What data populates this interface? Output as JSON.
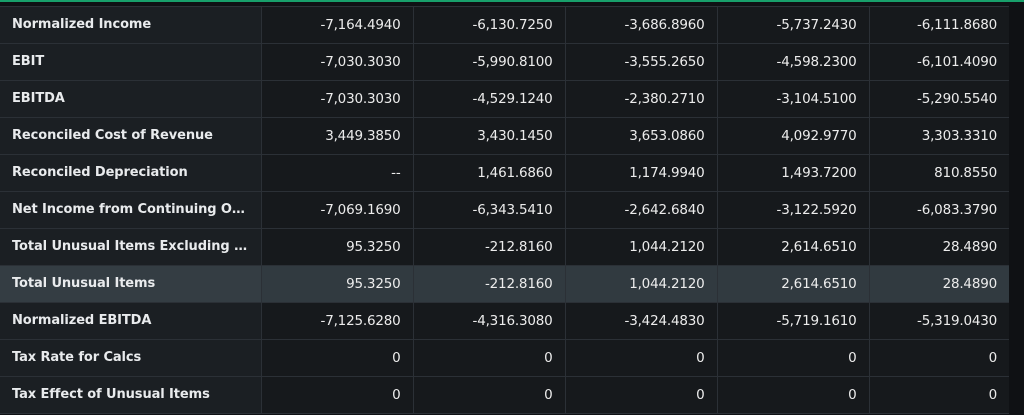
{
  "rows": [
    {
      "label": "Normalized Income",
      "values": [
        "-7,164.4940",
        "-6,130.7250",
        "-3,686.8960",
        "-5,737.2430",
        "-6,111.8680"
      ]
    },
    {
      "label": "EBIT",
      "values": [
        "-7,030.3030",
        "-5,990.8100",
        "-3,555.2650",
        "-4,598.2300",
        "-6,101.4090"
      ]
    },
    {
      "label": "EBITDA",
      "values": [
        "-7,030.3030",
        "-4,529.1240",
        "-2,380.2710",
        "-3,104.5100",
        "-5,290.5540"
      ]
    },
    {
      "label": "Reconciled Cost of Revenue",
      "values": [
        "3,449.3850",
        "3,430.1450",
        "3,653.0860",
        "4,092.9770",
        "3,303.3310"
      ]
    },
    {
      "label": "Reconciled Depreciation",
      "values": [
        "--",
        "1,461.6860",
        "1,174.9940",
        "1,493.7200",
        "810.8550"
      ]
    },
    {
      "label": "Net Income from Continuing Op...",
      "values": [
        "-7,069.1690",
        "-6,343.5410",
        "-2,642.6840",
        "-3,122.5920",
        "-6,083.3790"
      ]
    },
    {
      "label": "Total Unusual Items Excluding G...",
      "values": [
        "95.3250",
        "-212.8160",
        "1,044.2120",
        "2,614.6510",
        "28.4890"
      ]
    },
    {
      "label": "Total Unusual Items",
      "values": [
        "95.3250",
        "-212.8160",
        "1,044.2120",
        "2,614.6510",
        "28.4890"
      ],
      "highlighted": true
    },
    {
      "label": "Normalized EBITDA",
      "values": [
        "-7,125.6280",
        "-4,316.3080",
        "-3,424.4830",
        "-5,719.1610",
        "-5,319.0430"
      ]
    },
    {
      "label": "Tax Rate for Calcs",
      "values": [
        "0",
        "0",
        "0",
        "0",
        "0"
      ]
    },
    {
      "label": "Tax Effect of Unusual Items",
      "values": [
        "0",
        "0",
        "0",
        "0",
        "0"
      ]
    }
  ],
  "colors": {
    "accent": "#18a06b",
    "highlight_row": "#313a40",
    "cell_bg": "#16191c",
    "label_bg": "#1b1f23",
    "border": "#2b3036",
    "text": "#ececec"
  }
}
